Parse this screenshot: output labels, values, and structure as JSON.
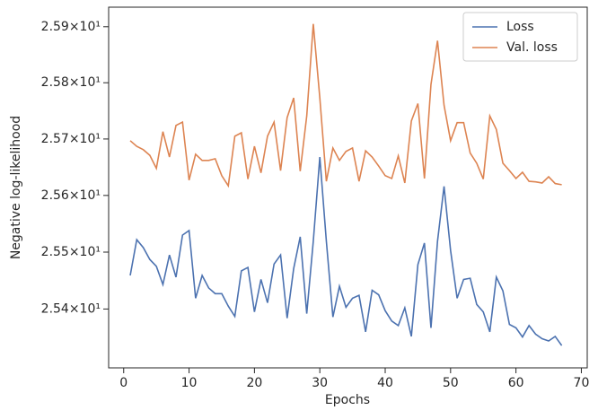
{
  "chart_data": {
    "type": "line",
    "x_label": "Epochs",
    "y_label": "Negative log-likelihood",
    "x": [
      1,
      2,
      3,
      4,
      5,
      6,
      7,
      8,
      9,
      10,
      11,
      12,
      13,
      14,
      15,
      16,
      17,
      18,
      19,
      20,
      21,
      22,
      23,
      24,
      25,
      26,
      27,
      28,
      29,
      30,
      31,
      32,
      33,
      34,
      35,
      36,
      37,
      38,
      39,
      40,
      41,
      42,
      43,
      44,
      45,
      46,
      47,
      48,
      49,
      50,
      51,
      52,
      53,
      54,
      55,
      56,
      57,
      58,
      59,
      60,
      61,
      62,
      63,
      64,
      65,
      66,
      67
    ],
    "series": [
      {
        "name": "Loss",
        "color": "#4c72b0",
        "values": [
          25.459,
          25.522,
          25.508,
          25.487,
          25.475,
          25.443,
          25.495,
          25.456,
          25.53,
          25.538,
          25.419,
          25.459,
          25.437,
          25.427,
          25.427,
          25.405,
          25.387,
          25.467,
          25.473,
          25.395,
          25.452,
          25.411,
          25.479,
          25.495,
          25.384,
          25.471,
          25.527,
          25.392,
          25.519,
          25.668,
          25.519,
          25.386,
          25.44,
          25.403,
          25.419,
          25.424,
          25.36,
          25.433,
          25.425,
          25.397,
          25.379,
          25.371,
          25.402,
          25.352,
          25.478,
          25.516,
          25.367,
          25.519,
          25.616,
          25.503,
          25.419,
          25.452,
          25.454,
          25.408,
          25.395,
          25.36,
          25.456,
          25.432,
          25.373,
          25.367,
          25.351,
          25.371,
          25.356,
          25.348,
          25.344,
          25.352,
          25.336
        ]
      },
      {
        "name": "Val. loss",
        "color": "#dd8452",
        "values": [
          25.697,
          25.687,
          25.681,
          25.671,
          25.648,
          25.713,
          25.668,
          25.724,
          25.73,
          25.627,
          25.673,
          25.662,
          25.662,
          25.665,
          25.635,
          25.617,
          25.705,
          25.711,
          25.629,
          25.687,
          25.64,
          25.705,
          25.73,
          25.644,
          25.738,
          25.773,
          25.643,
          25.741,
          25.905,
          25.773,
          25.625,
          25.684,
          25.662,
          25.678,
          25.684,
          25.625,
          25.679,
          25.668,
          25.652,
          25.635,
          25.63,
          25.67,
          25.622,
          25.732,
          25.763,
          25.63,
          25.797,
          25.875,
          25.76,
          25.697,
          25.729,
          25.729,
          25.675,
          25.657,
          25.629,
          25.741,
          25.717,
          25.657,
          25.644,
          25.63,
          25.641,
          25.625,
          25.624,
          25.622,
          25.633,
          25.621,
          25.619
        ]
      }
    ],
    "xlim": [
      -2.3,
      70.9
    ],
    "xticks": [
      0,
      10,
      20,
      30,
      40,
      50,
      60,
      70
    ],
    "ylim": [
      25.297,
      25.935
    ],
    "y_scale": "log",
    "yticks": [
      {
        "value": 25.4,
        "label": "2.54×10¹"
      },
      {
        "value": 25.5,
        "label": "2.55×10¹"
      },
      {
        "value": 25.6,
        "label": "2.56×10¹"
      },
      {
        "value": 25.7,
        "label": "2.57×10¹"
      },
      {
        "value": 25.8,
        "label": "2.58×10¹"
      },
      {
        "value": 25.9,
        "label": "2.59×10¹"
      }
    ],
    "legend": "upper right"
  }
}
